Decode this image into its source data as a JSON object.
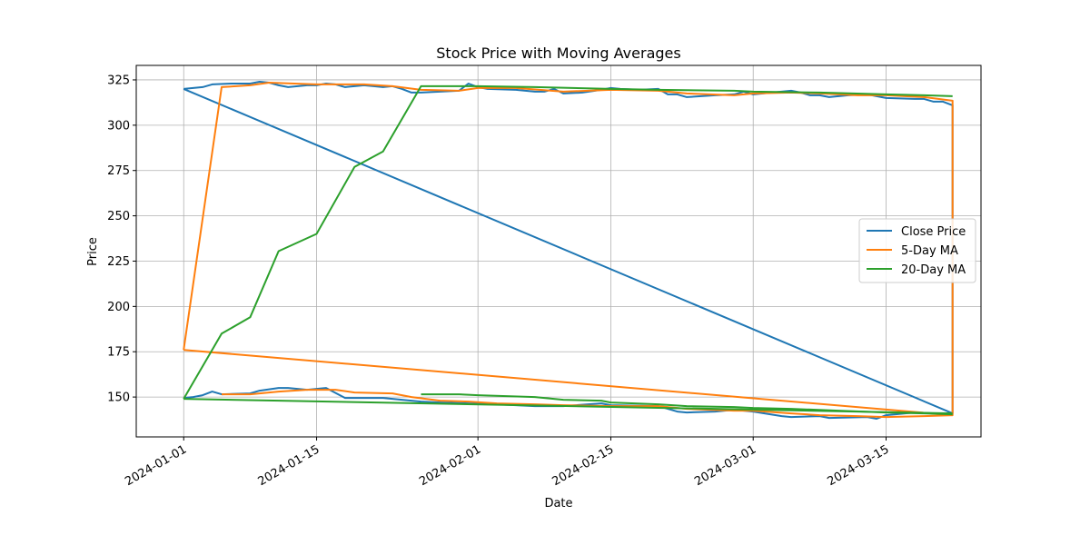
{
  "chart_data": {
    "type": "line",
    "title": "Stock Price with Moving Averages",
    "xlabel": "Date",
    "ylabel": "Price",
    "xlim": [
      "2023-12-27",
      "2024-03-25"
    ],
    "ylim": [
      128,
      333
    ],
    "x_ticks": [
      "2024-01-01",
      "2024-01-15",
      "2024-02-01",
      "2024-02-15",
      "2024-03-01",
      "2024-03-15"
    ],
    "y_ticks": [
      150,
      175,
      200,
      225,
      250,
      275,
      300,
      325
    ],
    "grid": true,
    "legend": "center-right",
    "series": [
      {
        "name": "Close Price",
        "color": "#1f77b4",
        "points": [
          [
            "2024-01-01",
            320
          ],
          [
            "2024-01-03",
            321
          ],
          [
            "2024-01-04",
            322.5
          ],
          [
            "2024-01-06",
            323
          ],
          [
            "2024-01-08",
            323
          ],
          [
            "2024-01-09",
            324
          ],
          [
            "2024-01-10",
            323.5
          ],
          [
            "2024-01-11",
            322
          ],
          [
            "2024-01-12",
            321
          ],
          [
            "2024-01-14",
            322
          ],
          [
            "2024-01-15",
            322
          ],
          [
            "2024-01-16",
            323
          ],
          [
            "2024-01-17",
            322.5
          ],
          [
            "2024-01-18",
            321
          ],
          [
            "2024-01-20",
            322
          ],
          [
            "2024-01-22",
            321
          ],
          [
            "2024-01-23",
            321.5
          ],
          [
            "2024-01-24",
            320
          ],
          [
            "2024-01-25",
            318
          ],
          [
            "2024-01-26",
            318
          ],
          [
            "2024-01-28",
            318.5
          ],
          [
            "2024-01-30",
            319
          ],
          [
            "2024-01-31",
            323
          ],
          [
            "2024-02-01",
            321
          ],
          [
            "2024-02-02",
            320
          ],
          [
            "2024-02-05",
            319.5
          ],
          [
            "2024-02-07",
            318.5
          ],
          [
            "2024-02-08",
            318.5
          ],
          [
            "2024-02-09",
            320
          ],
          [
            "2024-02-10",
            317.5
          ],
          [
            "2024-02-12",
            318
          ],
          [
            "2024-02-14",
            319.5
          ],
          [
            "2024-02-15",
            320.5
          ],
          [
            "2024-02-16",
            320
          ],
          [
            "2024-02-18",
            319.5
          ],
          [
            "2024-02-20",
            320
          ],
          [
            "2024-02-21",
            317
          ],
          [
            "2024-02-22",
            317
          ],
          [
            "2024-02-23",
            315.5
          ],
          [
            "2024-02-26",
            316.5
          ],
          [
            "2024-02-28",
            317
          ],
          [
            "2024-02-29",
            318.5
          ],
          [
            "2024-03-01",
            317
          ],
          [
            "2024-03-03",
            318
          ],
          [
            "2024-03-05",
            319
          ],
          [
            "2024-03-06",
            318
          ],
          [
            "2024-03-07",
            316.5
          ],
          [
            "2024-03-08",
            316.5
          ],
          [
            "2024-03-09",
            315.5
          ],
          [
            "2024-03-11",
            316.5
          ],
          [
            "2024-03-13",
            317
          ],
          [
            "2024-03-15",
            315
          ],
          [
            "2024-03-18",
            314.5
          ],
          [
            "2024-03-19",
            314.5
          ],
          [
            "2024-03-20",
            313
          ],
          [
            "2024-03-21",
            313
          ],
          [
            "2024-03-22",
            311
          ],
          [
            "2024-03-22",
            141
          ],
          [
            "2024-01-01",
            320
          ]
        ],
        "segments": [
          [
            [
              "2024-01-01",
              149.5
            ],
            [
              "2024-01-02",
              150
            ],
            [
              "2024-01-03",
              151
            ],
            [
              "2024-01-04",
              153
            ],
            [
              "2024-01-05",
              151.5
            ],
            [
              "2024-01-08",
              152
            ],
            [
              "2024-01-09",
              153.5
            ],
            [
              "2024-01-11",
              155
            ],
            [
              "2024-01-12",
              155
            ],
            [
              "2024-01-14",
              154
            ],
            [
              "2024-01-16",
              155
            ],
            [
              "2024-01-18",
              149.5
            ],
            [
              "2024-01-22",
              149.5
            ],
            [
              "2024-01-25",
              148
            ],
            [
              "2024-01-26",
              147.5
            ],
            [
              "2024-01-28",
              147
            ],
            [
              "2024-01-31",
              146.5
            ],
            [
              "2024-02-03",
              146
            ],
            [
              "2024-02-07",
              145
            ],
            [
              "2024-02-10",
              145
            ],
            [
              "2024-02-14",
              146.5
            ],
            [
              "2024-02-15",
              145.5
            ],
            [
              "2024-02-20",
              145
            ],
            [
              "2024-02-22",
              142
            ],
            [
              "2024-02-23",
              141.5
            ],
            [
              "2024-02-26",
              142
            ],
            [
              "2024-02-28",
              143
            ],
            [
              "2024-03-01",
              142
            ],
            [
              "2024-03-04",
              139.5
            ],
            [
              "2024-03-05",
              139
            ],
            [
              "2024-03-08",
              139.5
            ],
            [
              "2024-03-09",
              138.5
            ],
            [
              "2024-03-13",
              139
            ],
            [
              "2024-03-14",
              138
            ],
            [
              "2024-03-15",
              140
            ],
            [
              "2024-03-18",
              141.5
            ],
            [
              "2024-03-22",
              140.5
            ]
          ]
        ]
      },
      {
        "name": "5-Day MA",
        "color": "#ff7f0e",
        "points": [
          [
            "2024-01-01",
            176
          ],
          [
            "2024-01-05",
            321
          ],
          [
            "2024-01-08",
            322
          ],
          [
            "2024-01-10",
            323.5
          ],
          [
            "2024-01-15",
            322.5
          ],
          [
            "2024-01-20",
            322.5
          ],
          [
            "2024-01-23",
            321.5
          ],
          [
            "2024-01-26",
            319.5
          ],
          [
            "2024-01-30",
            319
          ],
          [
            "2024-02-01",
            320.5
          ],
          [
            "2024-02-05",
            320.5
          ],
          [
            "2024-02-10",
            318.5
          ],
          [
            "2024-02-15",
            319.5
          ],
          [
            "2024-02-20",
            319
          ],
          [
            "2024-02-23",
            317.5
          ],
          [
            "2024-02-28",
            316.5
          ],
          [
            "2024-03-01",
            317.5
          ],
          [
            "2024-03-05",
            318
          ],
          [
            "2024-03-08",
            317.5
          ],
          [
            "2024-03-12",
            316.5
          ],
          [
            "2024-03-15",
            316.5
          ],
          [
            "2024-03-19",
            315.5
          ],
          [
            "2024-03-22",
            313.5
          ],
          [
            "2024-03-22",
            140
          ],
          [
            "2024-01-01",
            176
          ]
        ],
        "segments": [
          [
            [
              "2024-01-05",
              151.5
            ],
            [
              "2024-01-08",
              151.5
            ],
            [
              "2024-01-11",
              153
            ],
            [
              "2024-01-14",
              154
            ],
            [
              "2024-01-17",
              154
            ],
            [
              "2024-01-19",
              152.5
            ],
            [
              "2024-01-23",
              152
            ],
            [
              "2024-01-25",
              150
            ],
            [
              "2024-01-28",
              148
            ],
            [
              "2024-01-31",
              147.5
            ],
            [
              "2024-02-03",
              146.5
            ],
            [
              "2024-02-07",
              146
            ],
            [
              "2024-02-10",
              145.5
            ],
            [
              "2024-02-15",
              145
            ],
            [
              "2024-02-20",
              145
            ],
            [
              "2024-02-23",
              143.5
            ],
            [
              "2024-02-28",
              142.5
            ],
            [
              "2024-03-01",
              142.5
            ],
            [
              "2024-03-05",
              141
            ],
            [
              "2024-03-08",
              140
            ],
            [
              "2024-03-12",
              139.5
            ],
            [
              "2024-03-15",
              139
            ],
            [
              "2024-03-19",
              139.5
            ],
            [
              "2024-03-22",
              140
            ]
          ]
        ]
      },
      {
        "name": "20-Day MA",
        "color": "#2ca02c",
        "points": [
          [
            "2024-01-01",
            149
          ],
          [
            "2024-01-05",
            185
          ],
          [
            "2024-01-08",
            194
          ],
          [
            "2024-01-11",
            230.5
          ],
          [
            "2024-01-15",
            240
          ],
          [
            "2024-01-19",
            277
          ],
          [
            "2024-01-22",
            285.5
          ],
          [
            "2024-01-26",
            321.5
          ],
          [
            "2024-01-30",
            321.5
          ],
          [
            "2024-02-01",
            321.5
          ],
          [
            "2024-02-07",
            321
          ],
          [
            "2024-02-15",
            320
          ],
          [
            "2024-02-20",
            319.5
          ],
          [
            "2024-02-28",
            319
          ],
          [
            "2024-03-01",
            318.5
          ],
          [
            "2024-03-08",
            318
          ],
          [
            "2024-03-15",
            317
          ],
          [
            "2024-03-19",
            316.5
          ],
          [
            "2024-03-22",
            316
          ]
        ],
        "segments": [
          [
            [
              "2024-01-01",
              149
            ],
            [
              "2024-03-22",
              141
            ]
          ],
          [
            [
              "2024-01-26",
              151.5
            ],
            [
              "2024-01-30",
              151.5
            ],
            [
              "2024-02-01",
              151
            ],
            [
              "2024-02-07",
              150
            ],
            [
              "2024-02-10",
              148.5
            ],
            [
              "2024-02-14",
              148
            ],
            [
              "2024-02-15",
              147
            ],
            [
              "2024-02-20",
              146
            ],
            [
              "2024-02-23",
              145
            ],
            [
              "2024-02-28",
              144.5
            ],
            [
              "2024-03-01",
              144
            ],
            [
              "2024-03-05",
              143.5
            ],
            [
              "2024-03-10",
              142.5
            ],
            [
              "2024-03-15",
              141.5
            ],
            [
              "2024-03-19",
              141
            ],
            [
              "2024-03-22",
              140.5
            ]
          ]
        ]
      }
    ]
  }
}
